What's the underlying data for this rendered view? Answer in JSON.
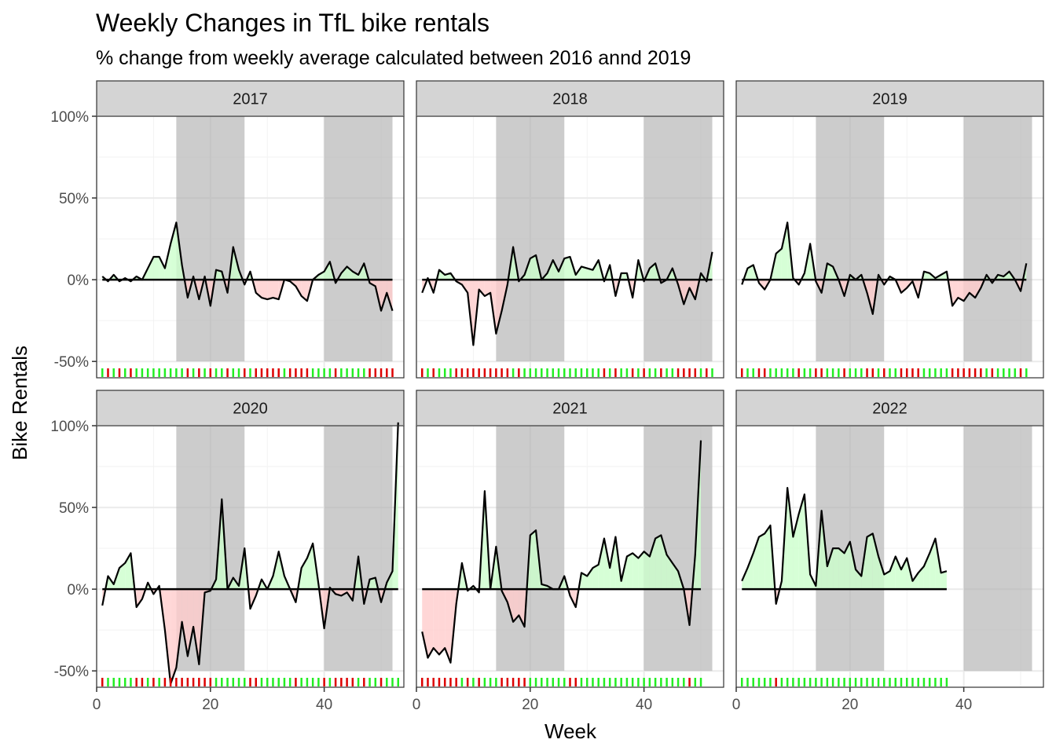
{
  "chart_data": {
    "type": "line",
    "title": "Weekly Changes in TfL bike rentals",
    "subtitle": "% change from weekly average calculated between 2016 annd 2019",
    "xlabel": "Week",
    "ylabel": "Bike Rentals",
    "xlim": [
      0,
      54
    ],
    "ylim": [
      -0.6,
      1.0
    ],
    "x_ticks": [
      0,
      20,
      40
    ],
    "x_tick_labels": [
      "0",
      "20",
      "40"
    ],
    "y_ticks": [
      -0.5,
      0,
      0.5,
      1.0
    ],
    "y_tick_labels": [
      "-50%",
      "0%",
      "50%",
      "100%"
    ],
    "shaded_week_ranges": [
      [
        14,
        26
      ],
      [
        40,
        52
      ]
    ],
    "grid": true,
    "colors": {
      "positive": "#ccffcc",
      "negative": "#ffcccc",
      "rug_positive": "#22ee22",
      "rug_negative": "#dd0000",
      "shade": "#b0b0b0",
      "strip": "#d4d4d4"
    },
    "panels": [
      {
        "label": "2017",
        "values": [
          0.02,
          -0.01,
          0.03,
          -0.01,
          0.01,
          -0.01,
          0.02,
          0.0,
          0.07,
          0.14,
          0.14,
          0.07,
          0.22,
          0.35,
          0.09,
          -0.11,
          0.02,
          -0.12,
          0.02,
          -0.16,
          0.06,
          0.05,
          -0.08,
          0.2,
          0.06,
          -0.03,
          0.05,
          -0.08,
          -0.11,
          -0.12,
          -0.11,
          -0.12,
          0.0,
          -0.01,
          -0.04,
          -0.1,
          -0.13,
          0.0,
          0.03,
          0.05,
          0.11,
          -0.02,
          0.04,
          0.08,
          0.05,
          0.03,
          0.1,
          -0.02,
          -0.04,
          -0.19,
          -0.08,
          -0.19
        ]
      },
      {
        "label": "2018",
        "values": [
          -0.08,
          0.01,
          -0.08,
          0.06,
          0.03,
          0.04,
          -0.01,
          -0.03,
          -0.08,
          -0.4,
          -0.06,
          -0.1,
          -0.08,
          -0.33,
          -0.19,
          -0.03,
          0.2,
          -0.01,
          0.03,
          0.13,
          0.15,
          0.0,
          0.04,
          0.12,
          0.05,
          0.13,
          0.14,
          0.03,
          0.08,
          0.07,
          0.06,
          0.12,
          -0.01,
          0.09,
          -0.1,
          0.04,
          0.04,
          -0.11,
          0.12,
          -0.01,
          0.07,
          0.1,
          -0.02,
          0.0,
          0.07,
          -0.03,
          -0.15,
          -0.05,
          -0.12,
          0.04,
          -0.01,
          0.17
        ]
      },
      {
        "label": "2019",
        "values": [
          -0.03,
          0.07,
          0.09,
          -0.02,
          -0.06,
          0.0,
          0.16,
          0.19,
          0.35,
          0.01,
          -0.03,
          0.04,
          0.22,
          -0.01,
          -0.08,
          0.1,
          0.08,
          0.0,
          -0.1,
          0.03,
          0.0,
          0.03,
          -0.08,
          -0.21,
          0.03,
          -0.03,
          0.02,
          0.0,
          -0.08,
          -0.05,
          -0.01,
          -0.11,
          0.05,
          0.04,
          0.01,
          0.03,
          0.05,
          -0.16,
          -0.11,
          -0.13,
          -0.08,
          -0.11,
          -0.05,
          0.03,
          -0.02,
          0.03,
          0.02,
          0.05,
          0.0,
          -0.07,
          0.1
        ]
      },
      {
        "label": "2020",
        "values": [
          -0.1,
          0.08,
          0.03,
          0.13,
          0.16,
          0.22,
          -0.11,
          -0.06,
          0.04,
          -0.03,
          0.02,
          -0.25,
          -0.58,
          -0.48,
          -0.2,
          -0.41,
          -0.23,
          -0.46,
          -0.02,
          -0.01,
          0.06,
          0.55,
          0.0,
          0.07,
          0.02,
          0.25,
          -0.12,
          -0.04,
          0.06,
          0.0,
          0.08,
          0.23,
          0.08,
          0.0,
          -0.08,
          0.13,
          0.19,
          0.28,
          0.03,
          -0.24,
          0.01,
          -0.03,
          -0.04,
          -0.02,
          -0.07,
          0.2,
          -0.09,
          0.06,
          0.07,
          -0.08,
          0.04,
          0.11,
          1.02
        ]
      },
      {
        "label": "2021",
        "values": [
          -0.26,
          -0.42,
          -0.36,
          -0.4,
          -0.36,
          -0.45,
          -0.09,
          0.16,
          -0.01,
          0.02,
          -0.02,
          0.6,
          0.0,
          0.26,
          -0.01,
          -0.08,
          -0.2,
          -0.16,
          -0.23,
          0.33,
          0.36,
          0.03,
          0.02,
          0.0,
          0.0,
          0.08,
          -0.04,
          -0.11,
          0.1,
          0.08,
          0.13,
          0.15,
          0.31,
          0.13,
          0.32,
          0.05,
          0.2,
          0.22,
          0.19,
          0.23,
          0.2,
          0.31,
          0.33,
          0.21,
          0.16,
          0.11,
          0.0,
          -0.22,
          0.21,
          0.91
        ]
      },
      {
        "label": "2022",
        "values": [
          0.05,
          0.13,
          0.22,
          0.32,
          0.34,
          0.39,
          -0.09,
          0.05,
          0.62,
          0.32,
          0.46,
          0.58,
          0.09,
          0.02,
          0.48,
          0.14,
          0.25,
          0.25,
          0.22,
          0.29,
          0.12,
          0.08,
          0.32,
          0.34,
          0.2,
          0.09,
          0.11,
          0.2,
          0.12,
          0.19,
          0.05,
          0.1,
          0.14,
          0.22,
          0.31,
          0.1,
          0.11
        ]
      }
    ]
  }
}
